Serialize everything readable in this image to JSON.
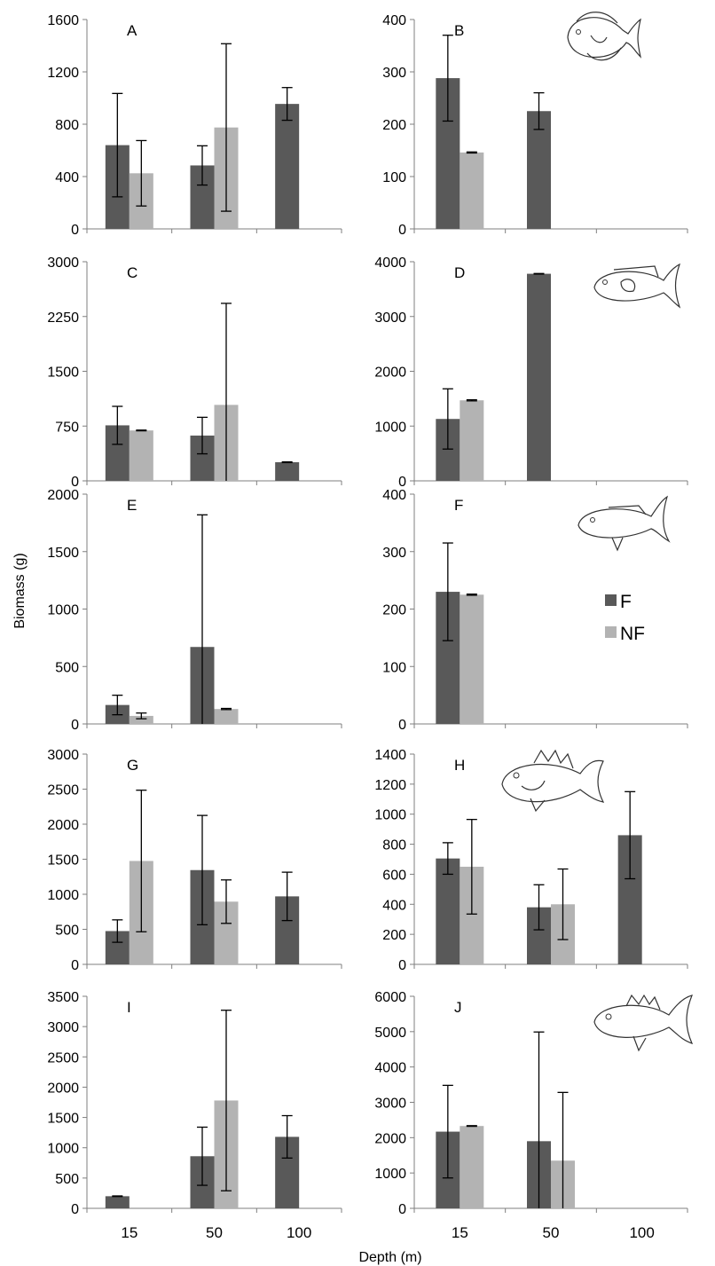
{
  "colors": {
    "F": "#595959",
    "NF": "#b3b3b3",
    "axis": "#7f7f7f",
    "text": "#000000"
  },
  "ylabel": "Biomass (g)",
  "xlabel": "Depth (m)",
  "legend": {
    "position": "right of panel F",
    "entries": [
      "F",
      "NF"
    ]
  },
  "chart_data": [
    {
      "panel": "A",
      "type": "bar",
      "categories": [
        "15",
        "50",
        "100"
      ],
      "ylim": [
        0,
        1600
      ],
      "yticks": [
        0,
        400,
        800,
        1200,
        1600
      ],
      "fish_icon": "surgeonfish-icon",
      "series": [
        {
          "name": "F",
          "values": [
            640,
            485,
            955
          ],
          "errors": [
            395,
            150,
            125
          ]
        },
        {
          "name": "NF",
          "values": [
            425,
            775,
            null
          ],
          "errors": [
            250,
            640,
            null
          ]
        }
      ]
    },
    {
      "panel": "B",
      "type": "bar",
      "categories": [
        "15",
        "50",
        "100"
      ],
      "ylim": [
        0,
        400
      ],
      "yticks": [
        0,
        100,
        200,
        300,
        400
      ],
      "fish_icon": "surgeonfish-icon",
      "series": [
        {
          "name": "F",
          "values": [
            288,
            225,
            null
          ],
          "errors": [
            82,
            35,
            null
          ]
        },
        {
          "name": "NF",
          "values": [
            146,
            null,
            null
          ],
          "errors": [
            1,
            null,
            null
          ]
        }
      ]
    },
    {
      "panel": "C",
      "type": "bar",
      "categories": [
        "15",
        "50",
        "100"
      ],
      "ylim": [
        0,
        3000
      ],
      "yticks": [
        0,
        750,
        1500,
        2250,
        3000
      ],
      "fish_icon": "parrotfish-icon",
      "series": [
        {
          "name": "F",
          "values": [
            760,
            620,
            255
          ],
          "errors": [
            260,
            250,
            5
          ]
        },
        {
          "name": "NF",
          "values": [
            690,
            1040,
            null
          ],
          "errors": [
            5,
            1390,
            null
          ]
        }
      ]
    },
    {
      "panel": "D",
      "type": "bar",
      "categories": [
        "15",
        "50",
        "100"
      ],
      "ylim": [
        0,
        4000
      ],
      "yticks": [
        0,
        1000,
        2000,
        3000,
        4000
      ],
      "fish_icon": "parrotfish-icon",
      "series": [
        {
          "name": "F",
          "values": [
            1130,
            3780,
            null
          ],
          "errors": [
            550,
            5,
            null
          ]
        },
        {
          "name": "NF",
          "values": [
            1470,
            null,
            null
          ],
          "errors": [
            10,
            null,
            null
          ]
        }
      ]
    },
    {
      "panel": "E",
      "type": "bar",
      "categories": [
        "15",
        "50",
        "100"
      ],
      "ylim": [
        0,
        2000
      ],
      "yticks": [
        0,
        500,
        1000,
        1500,
        2000
      ],
      "fish_icon": null,
      "series": [
        {
          "name": "F",
          "values": [
            165,
            670,
            null
          ],
          "errors": [
            85,
            1150,
            null
          ]
        },
        {
          "name": "NF",
          "values": [
            70,
            130,
            null
          ],
          "errors": [
            25,
            5,
            null
          ]
        }
      ]
    },
    {
      "panel": "F",
      "type": "bar",
      "categories": [
        "15",
        "50",
        "100"
      ],
      "ylim": [
        0,
        400
      ],
      "yticks": [
        0,
        100,
        200,
        300,
        400
      ],
      "fish_icon": "grunt-icon",
      "series": [
        {
          "name": "F",
          "values": [
            230,
            null,
            null
          ],
          "errors": [
            85,
            null,
            null
          ]
        },
        {
          "name": "NF",
          "values": [
            225,
            null,
            null
          ],
          "errors": [
            1,
            null,
            null
          ]
        }
      ]
    },
    {
      "panel": "G",
      "type": "bar",
      "categories": [
        "15",
        "50",
        "100"
      ],
      "ylim": [
        0,
        3000
      ],
      "yticks": [
        0,
        500,
        1000,
        1500,
        2000,
        2500,
        3000
      ],
      "fish_icon": null,
      "series": [
        {
          "name": "F",
          "values": [
            475,
            1345,
            970
          ],
          "errors": [
            160,
            780,
            345
          ]
        },
        {
          "name": "NF",
          "values": [
            1475,
            895,
            null
          ],
          "errors": [
            1010,
            310,
            null
          ]
        }
      ]
    },
    {
      "panel": "H",
      "type": "bar",
      "categories": [
        "15",
        "50",
        "100"
      ],
      "ylim": [
        0,
        1400
      ],
      "yticks": [
        0,
        200,
        400,
        600,
        800,
        1000,
        1200,
        1400
      ],
      "fish_icon": "grouper-icon",
      "series": [
        {
          "name": "F",
          "values": [
            705,
            380,
            860
          ],
          "errors": [
            105,
            150,
            290
          ]
        },
        {
          "name": "NF",
          "values": [
            650,
            400,
            null
          ],
          "errors": [
            315,
            235,
            null
          ]
        }
      ]
    },
    {
      "panel": "I",
      "type": "bar",
      "categories": [
        "15",
        "50",
        "100"
      ],
      "ylim": [
        0,
        3500
      ],
      "yticks": [
        0,
        500,
        1000,
        1500,
        2000,
        2500,
        3000,
        3500
      ],
      "fish_icon": null,
      "series": [
        {
          "name": "F",
          "values": [
            200,
            860,
            1180
          ],
          "errors": [
            5,
            480,
            350
          ]
        },
        {
          "name": "NF",
          "values": [
            null,
            1780,
            null
          ],
          "errors": [
            null,
            1490,
            null
          ]
        }
      ]
    },
    {
      "panel": "J",
      "type": "bar",
      "categories": [
        "15",
        "50",
        "100"
      ],
      "ylim": [
        0,
        6000
      ],
      "yticks": [
        0,
        1000,
        2000,
        3000,
        4000,
        5000,
        6000
      ],
      "fish_icon": "snapper-icon",
      "series": [
        {
          "name": "F",
          "values": [
            2170,
            1900,
            null
          ],
          "errors": [
            1310,
            3090,
            null
          ]
        },
        {
          "name": "NF",
          "values": [
            2330,
            1350,
            null
          ],
          "errors": [
            10,
            1930,
            null
          ]
        }
      ]
    }
  ]
}
